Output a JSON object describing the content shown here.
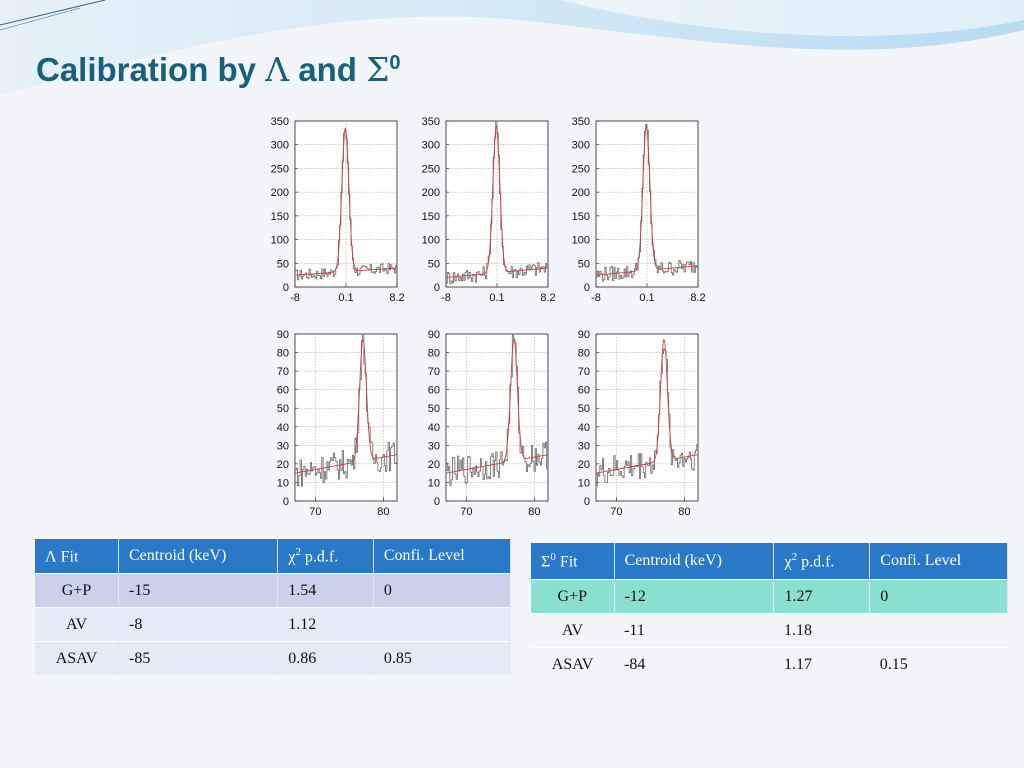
{
  "slide": {
    "title_prefix": "Calibration by ",
    "title_sym1": "Λ",
    "title_mid": " and ",
    "title_sym2": "Σ",
    "title_sup": "0"
  },
  "tables": {
    "lambda": {
      "head_sym": "Λ",
      "head_sup": "",
      "head_label": " Fit",
      "headers": [
        "Centroid (keV)",
        "χ",
        "Confi. Level"
      ],
      "chi_sup": "2",
      "chi_rest": " p.d.f.",
      "rows": [
        {
          "name": "G+P",
          "centroid": "-15",
          "chi2": "1.54",
          "cl": "0"
        },
        {
          "name": "AV",
          "centroid": "-8",
          "chi2": "1.12",
          "cl": ""
        },
        {
          "name": "ASAV",
          "centroid": "-85",
          "chi2": "0.86",
          "cl": "0.85"
        }
      ]
    },
    "sigma": {
      "head_sym": "Σ",
      "head_sup": "0",
      "head_label": " Fit",
      "headers": [
        "Centroid (keV)",
        "χ",
        "Confi. Level"
      ],
      "chi_sup": "2",
      "chi_rest": " p.d.f.",
      "rows": [
        {
          "name": "G+P",
          "centroid": "-12",
          "chi2": "1.27",
          "cl": "0"
        },
        {
          "name": "AV",
          "centroid": "-11",
          "chi2": "1.18",
          "cl": ""
        },
        {
          "name": "ASAV",
          "centroid": "-84",
          "chi2": "1.17",
          "cl": "0.15"
        }
      ]
    }
  },
  "chart_data": [
    {
      "type": "line",
      "panel": "top-1",
      "xticks": [
        "-8",
        "0.1",
        "8.2"
      ],
      "yticks": [
        "0",
        "50",
        "100",
        "150",
        "200",
        "250",
        "300",
        "350"
      ],
      "xlim": [
        -8,
        8.2
      ],
      "ylim": [
        0,
        350
      ],
      "peak_x": 0,
      "peak_y": 335,
      "peak_width": 0.55,
      "background": [
        25,
        40
      ],
      "grid": true,
      "line_colors": [
        "#666666",
        "#d04040"
      ]
    },
    {
      "type": "line",
      "panel": "top-2",
      "xticks": [
        "-8",
        "0.1",
        "8.2"
      ],
      "yticks": [
        "0",
        "50",
        "100",
        "150",
        "200",
        "250",
        "300",
        "350"
      ],
      "xlim": [
        -8,
        8.2
      ],
      "ylim": [
        0,
        350
      ],
      "peak_x": 0,
      "peak_y": 340,
      "peak_width": 0.55,
      "background": [
        20,
        40
      ],
      "grid": true,
      "line_colors": [
        "#666666",
        "#d04040"
      ]
    },
    {
      "type": "line",
      "panel": "top-3",
      "xticks": [
        "-8",
        "0.1",
        "8.2"
      ],
      "yticks": [
        "0",
        "50",
        "100",
        "150",
        "200",
        "250",
        "300",
        "350"
      ],
      "xlim": [
        -8,
        8.2
      ],
      "ylim": [
        0,
        350
      ],
      "peak_x": 0,
      "peak_y": 340,
      "peak_width": 0.55,
      "background": [
        25,
        45
      ],
      "grid": true,
      "line_colors": [
        "#666666",
        "#d04040"
      ]
    },
    {
      "type": "line",
      "panel": "bottom-1",
      "xticks": [
        "70",
        "80"
      ],
      "yticks": [
        "0",
        "10",
        "20",
        "30",
        "40",
        "50",
        "60",
        "70",
        "80",
        "90"
      ],
      "xlim": [
        67,
        82
      ],
      "ylim": [
        0,
        90
      ],
      "peak_x": 77,
      "peak_y": 87,
      "peak_width": 0.5,
      "background": [
        15,
        25
      ],
      "grid": true,
      "line_colors": [
        "#666666",
        "#d04040"
      ]
    },
    {
      "type": "line",
      "panel": "bottom-2",
      "xticks": [
        "70",
        "80"
      ],
      "yticks": [
        "0",
        "10",
        "20",
        "30",
        "40",
        "50",
        "60",
        "70",
        "80",
        "90"
      ],
      "xlim": [
        67,
        82
      ],
      "ylim": [
        0,
        90
      ],
      "peak_x": 77,
      "peak_y": 87,
      "peak_width": 0.5,
      "background": [
        15,
        25
      ],
      "grid": true,
      "line_colors": [
        "#666666",
        "#d04040"
      ]
    },
    {
      "type": "line",
      "panel": "bottom-3",
      "xticks": [
        "70",
        "80"
      ],
      "yticks": [
        "0",
        "10",
        "20",
        "30",
        "40",
        "50",
        "60",
        "70",
        "80",
        "90"
      ],
      "xlim": [
        67,
        82
      ],
      "ylim": [
        0,
        90
      ],
      "peak_x": 77,
      "peak_y": 87,
      "peak_width": 0.5,
      "background": [
        15,
        25
      ],
      "grid": true,
      "line_colors": [
        "#666666",
        "#d04040"
      ]
    }
  ]
}
